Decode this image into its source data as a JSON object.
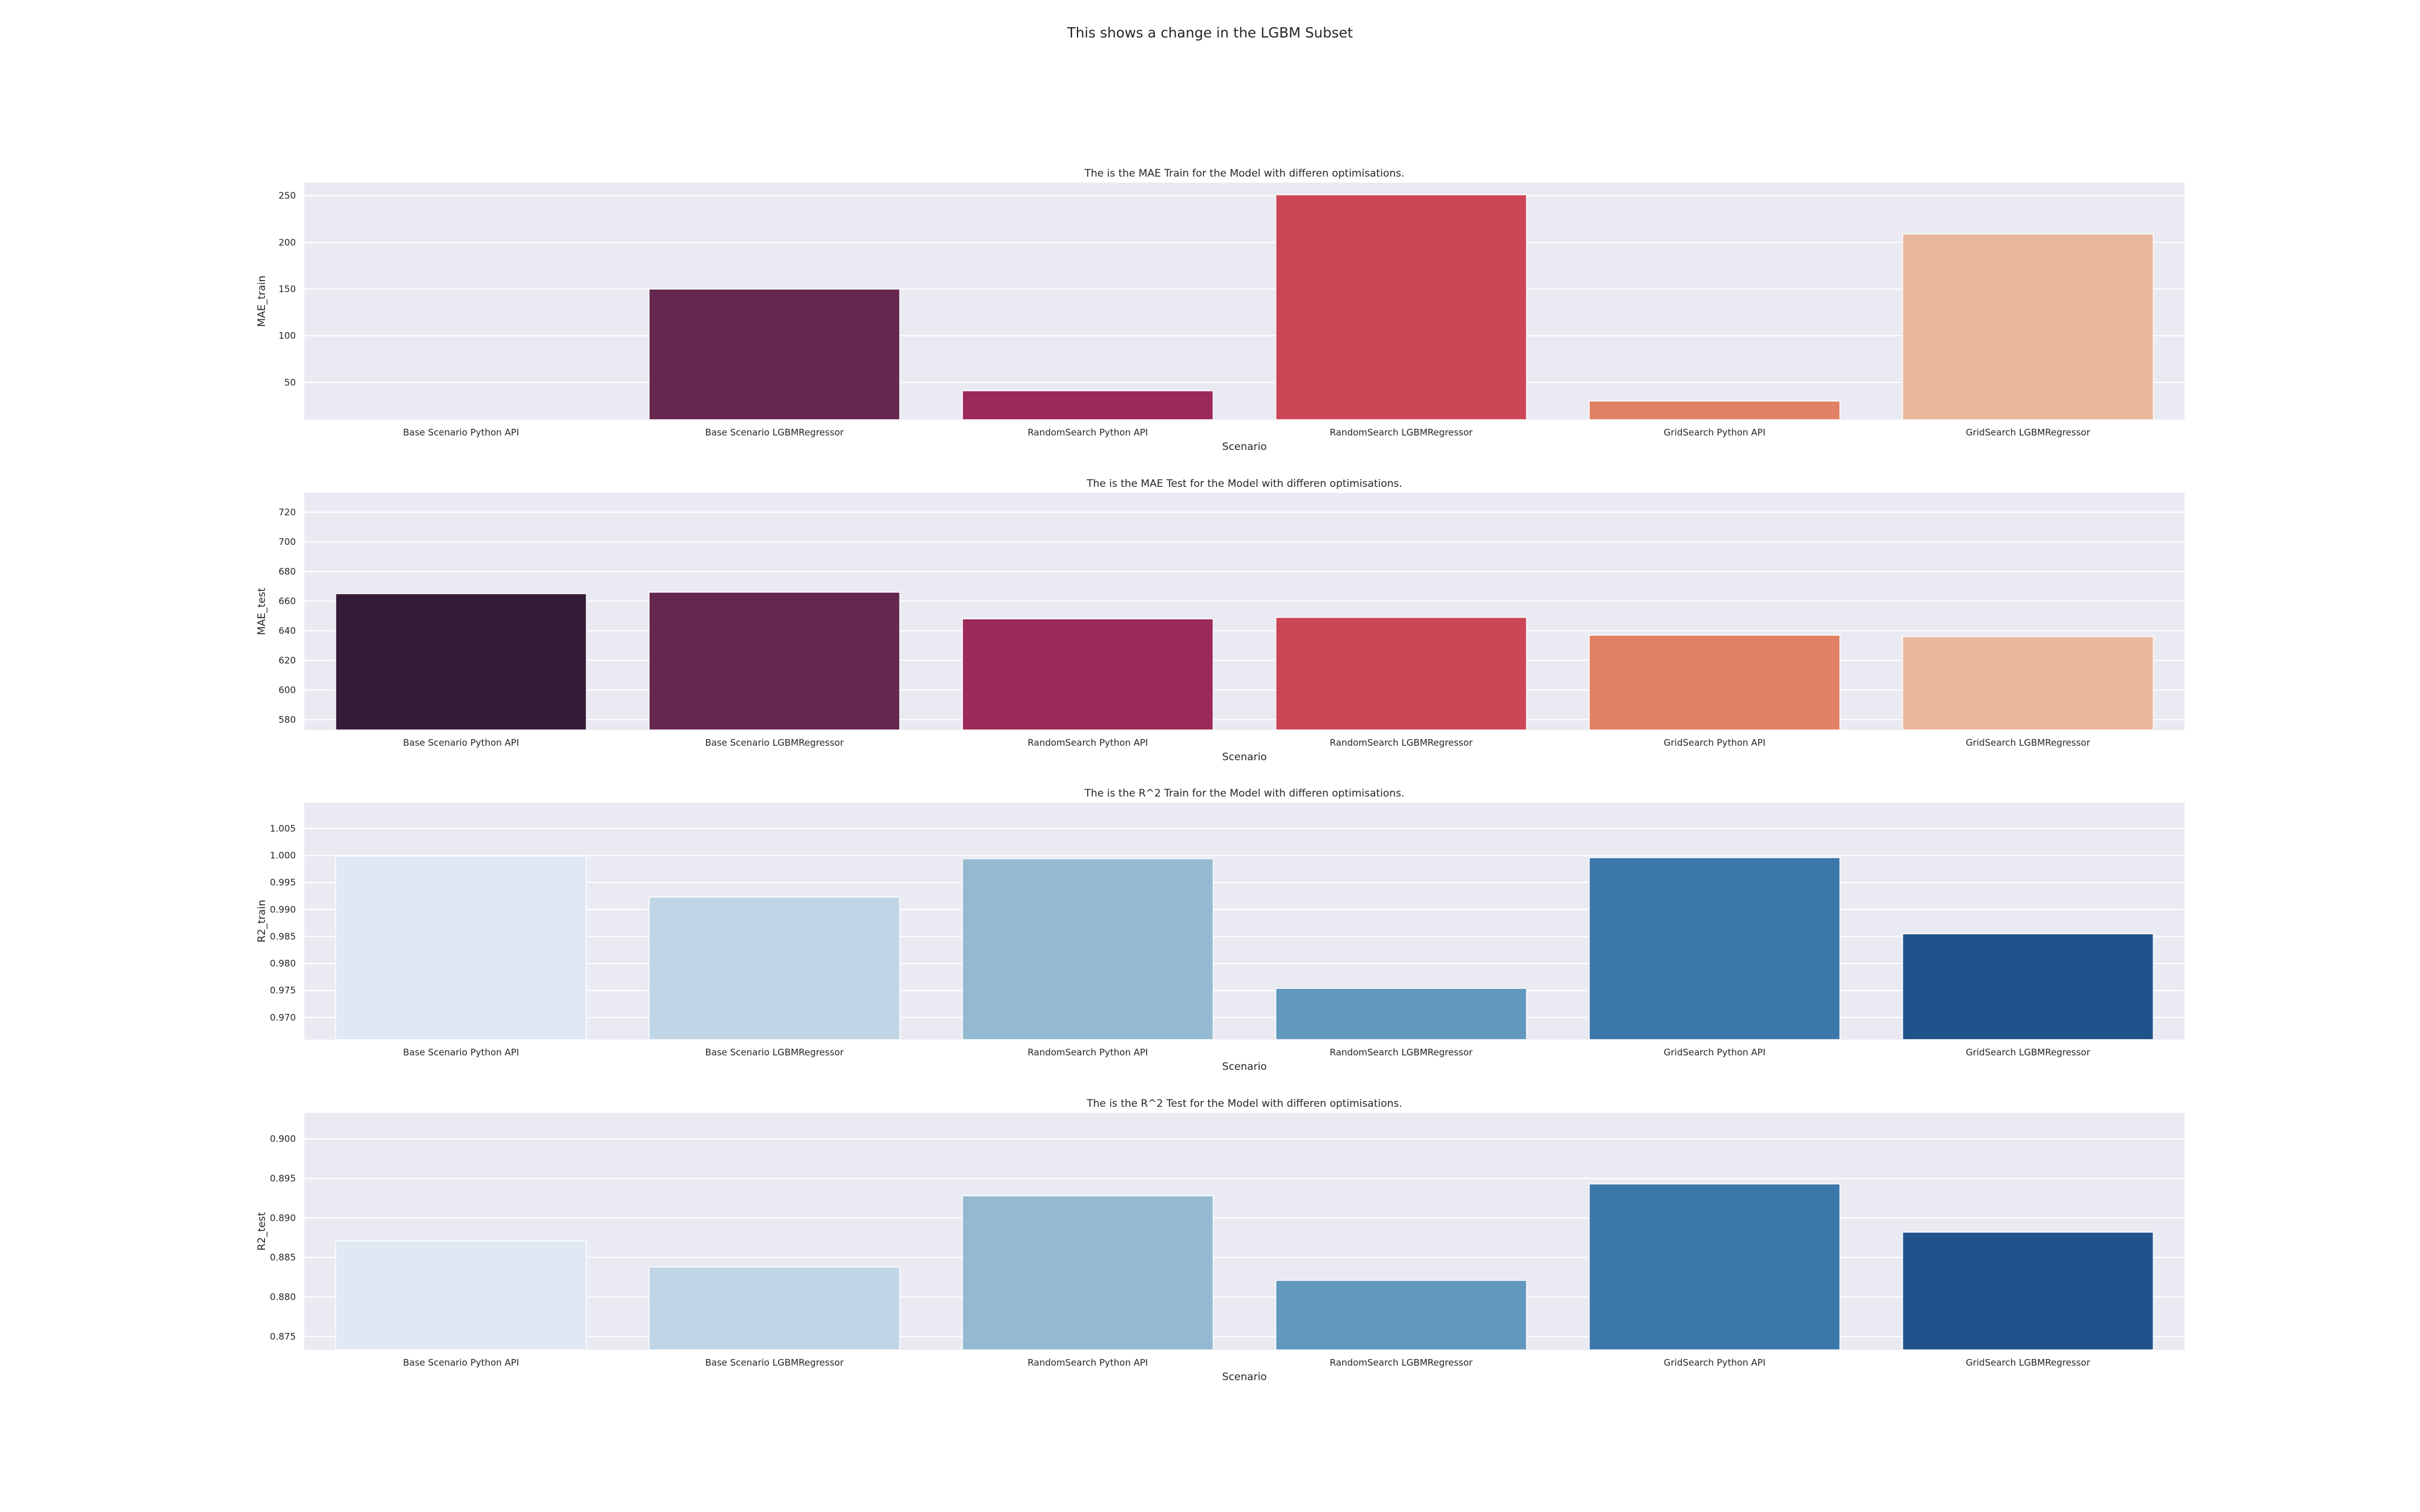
{
  "figure": {
    "suptitle": "This shows a change in the LGBM Subset"
  },
  "chart_data": [
    {
      "type": "bar",
      "title": "The is the MAE Train for the Model with differen optimisations.",
      "xlabel": "Scenario",
      "ylabel": "MAE_train",
      "categories": [
        "Base Scenario Python API",
        "Base Scenario LGBMRegressor",
        "RandomSearch Python API",
        "RandomSearch LGBMRegressor",
        "GridSearch Python API",
        "GridSearch LGBMRegressor"
      ],
      "values": [
        5,
        150,
        41,
        251,
        30,
        209
      ],
      "ylim": [
        10,
        264
      ],
      "yticks": [
        50,
        100,
        150,
        200,
        250
      ],
      "ytick_labels": [
        "50",
        "100",
        "150",
        "200",
        "250"
      ],
      "colors": [
        "#341c37",
        "#65274f",
        "#9b2959",
        "#cc4655",
        "#e08064",
        "#e9b79c"
      ],
      "grid": true
    },
    {
      "type": "bar",
      "title": "The is the MAE Test for the Model with differen optimisations.",
      "xlabel": "Scenario",
      "ylabel": "MAE_test",
      "categories": [
        "Base Scenario Python API",
        "Base Scenario LGBMRegressor",
        "RandomSearch Python API",
        "RandomSearch LGBMRegressor",
        "GridSearch Python API",
        "GridSearch LGBMRegressor"
      ],
      "values": [
        665,
        666,
        648,
        649,
        637,
        636
      ],
      "ylim": [
        573,
        733
      ],
      "yticks": [
        580,
        600,
        620,
        640,
        660,
        680,
        700,
        720
      ],
      "ytick_labels": [
        "580",
        "600",
        "620",
        "640",
        "660",
        "680",
        "700",
        "720"
      ],
      "colors": [
        "#341c37",
        "#65274f",
        "#9b2959",
        "#cc4655",
        "#e08064",
        "#e9b79c"
      ],
      "grid": true
    },
    {
      "type": "bar",
      "title": "The is the R^2 Train for the Model with differen optimisations.",
      "xlabel": "Scenario",
      "ylabel": "R2_train",
      "categories": [
        "Base Scenario Python API",
        "Base Scenario LGBMRegressor",
        "RandomSearch Python API",
        "RandomSearch LGBMRegressor",
        "GridSearch Python API",
        "GridSearch LGBMRegressor"
      ],
      "values": [
        0.9999,
        0.9923,
        0.9994,
        0.9754,
        0.9996,
        0.9855
      ],
      "ylim": [
        0.9659,
        1.0098
      ],
      "yticks": [
        0.97,
        0.975,
        0.98,
        0.985,
        0.99,
        0.995,
        1.0,
        1.005
      ],
      "ytick_labels": [
        "0.970",
        "0.975",
        "0.980",
        "0.985",
        "0.990",
        "0.995",
        "1.000",
        "1.005"
      ],
      "colors": [
        "#dfe8f3",
        "#c0d5e6",
        "#94bad1",
        "#6198be",
        "#3c77a9",
        "#20538b"
      ],
      "grid": true
    },
    {
      "type": "bar",
      "title": "The is the R^2 Test for the Model with differen optimisations.",
      "xlabel": "Scenario",
      "ylabel": "R2_test",
      "categories": [
        "Base Scenario Python API",
        "Base Scenario LGBMRegressor",
        "RandomSearch Python API",
        "RandomSearch LGBMRegressor",
        "GridSearch Python API",
        "GridSearch LGBMRegressor"
      ],
      "values": [
        0.8871,
        0.8838,
        0.8928,
        0.8821,
        0.8943,
        0.8882
      ],
      "ylim": [
        0.8733,
        0.9033
      ],
      "yticks": [
        0.875,
        0.88,
        0.885,
        0.89,
        0.895,
        0.9
      ],
      "ytick_labels": [
        "0.875",
        "0.880",
        "0.885",
        "0.890",
        "0.895",
        "0.900"
      ],
      "colors": [
        "#dfe8f3",
        "#c0d5e6",
        "#94bad1",
        "#6198be",
        "#3c77a9",
        "#20538b"
      ],
      "grid": true
    }
  ]
}
